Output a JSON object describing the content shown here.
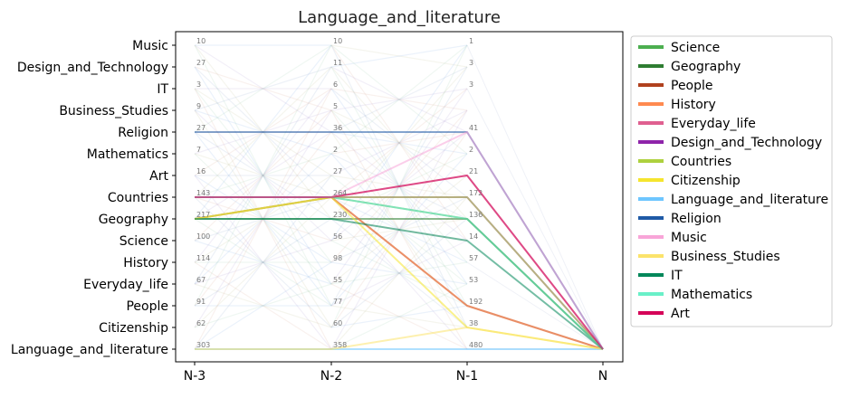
{
  "chart_data": {
    "type": "line",
    "title": "Language_and_literature",
    "x_ticks": [
      "N-3",
      "N-2",
      "N-1",
      "N"
    ],
    "y_categories": [
      "Music",
      "Design_and_Technology",
      "IT",
      "Business_Studies",
      "Religion",
      "Mathematics",
      "Art",
      "Countries",
      "Geography",
      "Science",
      "History",
      "Everyday_life",
      "People",
      "Citizenship",
      "Language_and_literature"
    ],
    "point_counts": {
      "N-3": {
        "Music": "10",
        "Design_and_Technology": "27",
        "IT": "3",
        "Business_Studies": "9",
        "Religion": "27",
        "Mathematics": "7",
        "Art": "16",
        "Countries": "143",
        "Geography": "217",
        "Science": "100",
        "History": "114",
        "Everyday_life": "67",
        "People": "91",
        "Citizenship": "62",
        "Language_and_literature": "303"
      },
      "N-2": {
        "Music": "10",
        "Design_and_Technology": "11",
        "IT": "6",
        "Business_Studies": "5",
        "Religion": "36",
        "Mathematics": "2",
        "Art": "27",
        "Countries": "264",
        "Geography": "230",
        "Science": "56",
        "History": "98",
        "Everyday_life": "55",
        "People": "77",
        "Citizenship": "60",
        "Language_and_literature": "358"
      },
      "N-1": {
        "Music": "1",
        "Design_and_Technology": "3",
        "IT": "3",
        "Religion": "41",
        "Mathematics": "2",
        "Art": "21",
        "Countries": "172",
        "Geography": "136",
        "Science": "14",
        "History": "57",
        "Everyday_life": "53",
        "People": "192",
        "Citizenship": "38",
        "Language_and_literature": "480"
      }
    },
    "series": [
      {
        "name": "Science",
        "color": "#4caf50",
        "path": [
          "Countries",
          "Countries",
          "Geography",
          "Language_and_literature"
        ]
      },
      {
        "name": "Geography",
        "color": "#2e7d32",
        "path": [
          "Geography",
          "Geography",
          "Geography",
          "Language_and_literature"
        ]
      },
      {
        "name": "People",
        "color": "#b0411e",
        "path": [
          "Geography",
          "Countries",
          "People",
          "Language_and_literature"
        ]
      },
      {
        "name": "History",
        "color": "#ff8a50",
        "path": [
          "Countries",
          "Countries",
          "People",
          "Language_and_literature"
        ]
      },
      {
        "name": "Everyday_life",
        "color": "#e06090",
        "path": [
          "Countries",
          "Countries",
          "Art",
          "Language_and_literature"
        ]
      },
      {
        "name": "Design_and_Technology",
        "color": "#8e24aa",
        "path": [
          "Countries",
          "Countries",
          "Countries",
          "Language_and_literature"
        ]
      },
      {
        "name": "Countries",
        "color": "#aed13f",
        "path": [
          "Geography",
          "Countries",
          "Countries",
          "Language_and_literature"
        ]
      },
      {
        "name": "Citizenship",
        "color": "#f5e52e",
        "path": [
          "Geography",
          "Countries",
          "Citizenship",
          "Language_and_literature"
        ]
      },
      {
        "name": "Language_and_literature",
        "color": "#6ec6ff",
        "path": [
          "Language_and_literature",
          "Language_and_literature",
          "Language_and_literature",
          "Language_and_literature"
        ]
      },
      {
        "name": "Religion",
        "color": "#1f5aa6",
        "path": [
          "Religion",
          "Religion",
          "Religion",
          "Language_and_literature"
        ]
      },
      {
        "name": "Music",
        "color": "#f8a5d8",
        "path": [
          "Countries",
          "Countries",
          "Religion",
          "Language_and_literature"
        ]
      },
      {
        "name": "Business_Studies",
        "color": "#fbe36b",
        "path": [
          "Language_and_literature",
          "Language_and_literature",
          "Citizenship",
          "Language_and_literature"
        ]
      },
      {
        "name": "IT",
        "color": "#00875a",
        "path": [
          "Geography",
          "Geography",
          "Science",
          "Language_and_literature"
        ]
      },
      {
        "name": "Mathematics",
        "color": "#69f0c8",
        "path": [
          "Countries",
          "Countries",
          "Geography",
          "Language_and_literature"
        ]
      },
      {
        "name": "Art",
        "color": "#d50058",
        "path": [
          "Countries",
          "Countries",
          "Art",
          "Language_and_literature"
        ]
      }
    ],
    "legend_position": "outside-right",
    "grid": false
  }
}
